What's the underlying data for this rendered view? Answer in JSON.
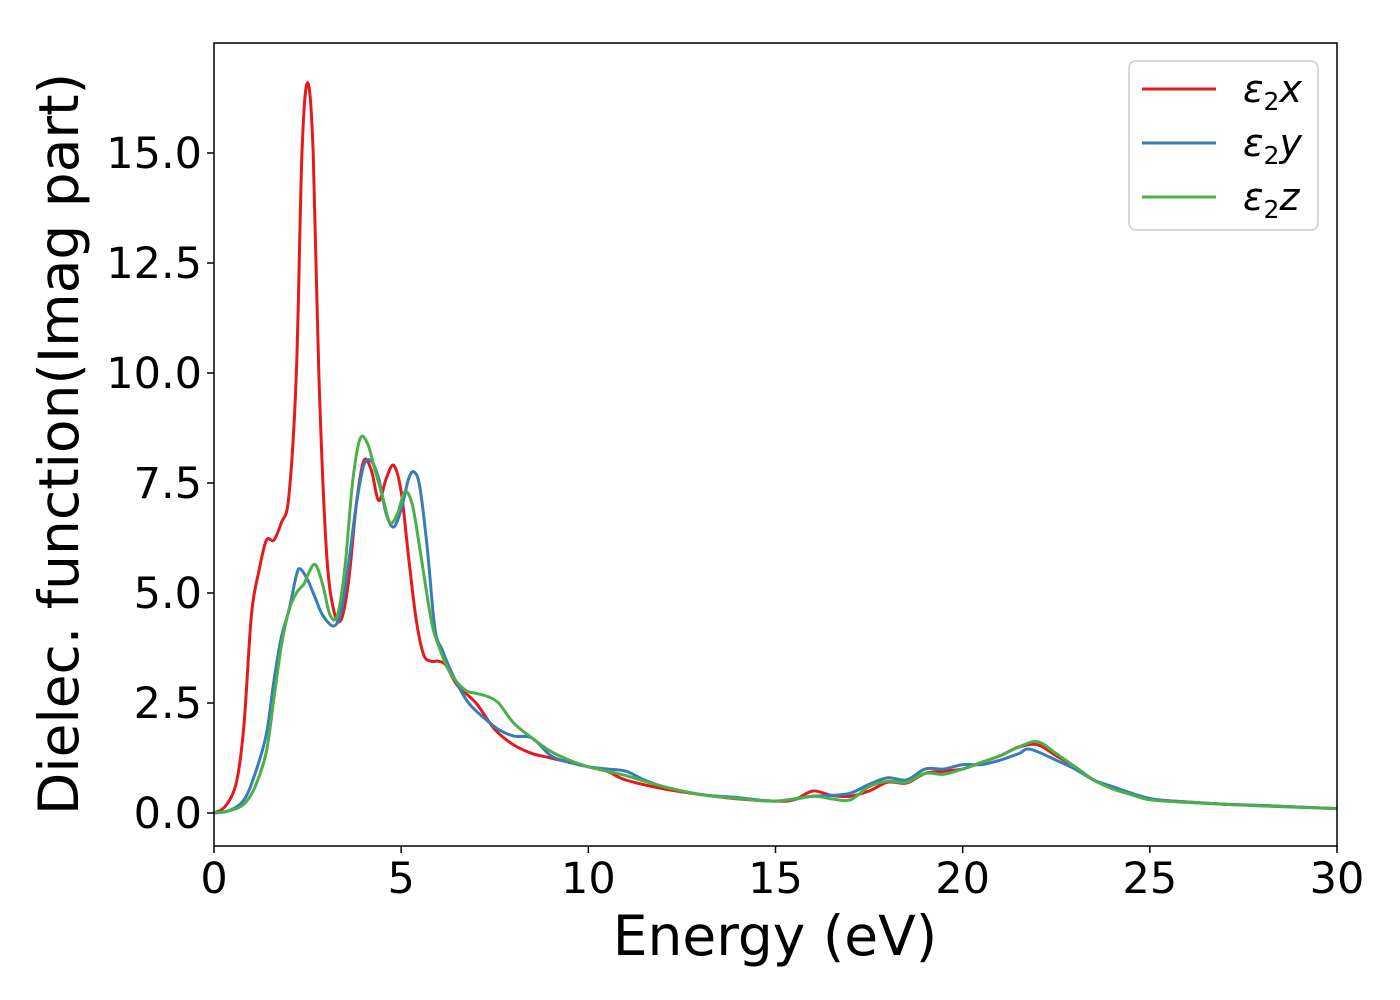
{
  "chart_data": {
    "type": "line",
    "xlabel": "Energy (eV)",
    "ylabel": "Dielec. function(Imag part)",
    "xlim": [
      0,
      30
    ],
    "ylim": [
      -0.75,
      17.5
    ],
    "x_ticks": [
      0,
      5,
      10,
      15,
      20,
      25,
      30
    ],
    "x_tick_labels": [
      "0",
      "5",
      "10",
      "15",
      "20",
      "25",
      "30"
    ],
    "y_ticks": [
      0.0,
      2.5,
      5.0,
      7.5,
      10.0,
      12.5,
      15.0
    ],
    "y_tick_labels": [
      "0.0",
      "2.5",
      "5.0",
      "7.5",
      "10.0",
      "12.5",
      "15.0"
    ],
    "grid": false,
    "legend_position": "top-right",
    "series": [
      {
        "name": "ε2x",
        "legend_main": "ε",
        "legend_sub": "2",
        "legend_var": "x",
        "color": "#e41a1c",
        "points": [
          [
            0,
            0
          ],
          [
            0.3,
            0.15
          ],
          [
            0.6,
            0.7
          ],
          [
            0.8,
            2.0
          ],
          [
            1.0,
            4.5
          ],
          [
            1.2,
            5.5
          ],
          [
            1.4,
            6.2
          ],
          [
            1.6,
            6.2
          ],
          [
            1.8,
            6.6
          ],
          [
            2.0,
            7.2
          ],
          [
            2.2,
            10.0
          ],
          [
            2.35,
            15.0
          ],
          [
            2.5,
            16.6
          ],
          [
            2.65,
            15.0
          ],
          [
            2.8,
            10.0
          ],
          [
            3.0,
            6.0
          ],
          [
            3.2,
            4.6
          ],
          [
            3.4,
            4.4
          ],
          [
            3.6,
            5.3
          ],
          [
            3.8,
            7.0
          ],
          [
            4.0,
            8.0
          ],
          [
            4.2,
            7.8
          ],
          [
            4.4,
            7.1
          ],
          [
            4.6,
            7.6
          ],
          [
            4.8,
            7.9
          ],
          [
            5.0,
            7.3
          ],
          [
            5.2,
            5.8
          ],
          [
            5.4,
            4.4
          ],
          [
            5.6,
            3.6
          ],
          [
            5.8,
            3.45
          ],
          [
            6.0,
            3.45
          ],
          [
            6.2,
            3.35
          ],
          [
            6.5,
            2.9
          ],
          [
            7.0,
            2.5
          ],
          [
            7.5,
            1.9
          ],
          [
            8.0,
            1.55
          ],
          [
            8.5,
            1.35
          ],
          [
            9.0,
            1.25
          ],
          [
            10.0,
            1.05
          ],
          [
            10.5,
            0.95
          ],
          [
            11.0,
            0.75
          ],
          [
            12.0,
            0.55
          ],
          [
            13.0,
            0.42
          ],
          [
            14.0,
            0.32
          ],
          [
            15.0,
            0.27
          ],
          [
            15.5,
            0.3
          ],
          [
            16.0,
            0.5
          ],
          [
            16.5,
            0.4
          ],
          [
            17.0,
            0.38
          ],
          [
            17.5,
            0.5
          ],
          [
            18.0,
            0.7
          ],
          [
            18.5,
            0.68
          ],
          [
            19.0,
            0.9
          ],
          [
            19.5,
            0.95
          ],
          [
            20.0,
            1.0
          ],
          [
            20.5,
            1.15
          ],
          [
            21.0,
            1.3
          ],
          [
            21.5,
            1.5
          ],
          [
            22.0,
            1.55
          ],
          [
            22.5,
            1.3
          ],
          [
            23.0,
            1.05
          ],
          [
            23.5,
            0.75
          ],
          [
            24.0,
            0.58
          ],
          [
            24.5,
            0.45
          ],
          [
            25.0,
            0.32
          ],
          [
            26.0,
            0.25
          ],
          [
            27.0,
            0.2
          ],
          [
            28.0,
            0.17
          ],
          [
            30.0,
            0.1
          ]
        ]
      },
      {
        "name": "ε2y",
        "legend_main": "ε",
        "legend_sub": "2",
        "legend_var": "y",
        "color": "#377eb8",
        "points": [
          [
            0,
            0
          ],
          [
            0.4,
            0.05
          ],
          [
            0.8,
            0.3
          ],
          [
            1.1,
            0.9
          ],
          [
            1.4,
            1.8
          ],
          [
            1.6,
            3.0
          ],
          [
            1.8,
            4.0
          ],
          [
            2.0,
            4.6
          ],
          [
            2.2,
            5.4
          ],
          [
            2.3,
            5.55
          ],
          [
            2.5,
            5.3
          ],
          [
            2.7,
            4.9
          ],
          [
            2.9,
            4.5
          ],
          [
            3.2,
            4.25
          ],
          [
            3.4,
            4.6
          ],
          [
            3.6,
            5.7
          ],
          [
            3.8,
            7.0
          ],
          [
            4.0,
            7.9
          ],
          [
            4.2,
            8.0
          ],
          [
            4.4,
            7.6
          ],
          [
            4.6,
            6.8
          ],
          [
            4.8,
            6.5
          ],
          [
            5.0,
            6.9
          ],
          [
            5.2,
            7.6
          ],
          [
            5.35,
            7.75
          ],
          [
            5.5,
            7.4
          ],
          [
            5.7,
            6.0
          ],
          [
            5.9,
            4.2
          ],
          [
            6.1,
            3.7
          ],
          [
            6.4,
            3.1
          ],
          [
            6.8,
            2.5
          ],
          [
            7.3,
            2.1
          ],
          [
            7.6,
            1.9
          ],
          [
            8.0,
            1.75
          ],
          [
            8.5,
            1.7
          ],
          [
            9.0,
            1.3
          ],
          [
            9.5,
            1.15
          ],
          [
            10.0,
            1.05
          ],
          [
            10.5,
            1.0
          ],
          [
            11.0,
            0.95
          ],
          [
            11.5,
            0.75
          ],
          [
            12.0,
            0.6
          ],
          [
            13.0,
            0.42
          ],
          [
            14.0,
            0.35
          ],
          [
            15.0,
            0.27
          ],
          [
            16.0,
            0.38
          ],
          [
            16.5,
            0.4
          ],
          [
            17.0,
            0.45
          ],
          [
            17.5,
            0.65
          ],
          [
            18.0,
            0.8
          ],
          [
            18.5,
            0.75
          ],
          [
            19.0,
            1.0
          ],
          [
            19.5,
            1.0
          ],
          [
            20.0,
            1.1
          ],
          [
            20.5,
            1.1
          ],
          [
            21.0,
            1.2
          ],
          [
            21.5,
            1.35
          ],
          [
            21.8,
            1.45
          ],
          [
            22.5,
            1.2
          ],
          [
            23.0,
            1.0
          ],
          [
            23.5,
            0.75
          ],
          [
            24.0,
            0.6
          ],
          [
            25.0,
            0.33
          ],
          [
            26.0,
            0.25
          ],
          [
            27.0,
            0.2
          ],
          [
            28.0,
            0.17
          ],
          [
            30.0,
            0.1
          ]
        ]
      },
      {
        "name": "ε2z",
        "legend_main": "ε",
        "legend_sub": "2",
        "legend_var": "z",
        "color": "#4daf4a",
        "points": [
          [
            0,
            0
          ],
          [
            0.4,
            0.05
          ],
          [
            0.8,
            0.2
          ],
          [
            1.1,
            0.6
          ],
          [
            1.4,
            1.4
          ],
          [
            1.6,
            2.6
          ],
          [
            1.8,
            3.8
          ],
          [
            2.0,
            4.6
          ],
          [
            2.2,
            5.0
          ],
          [
            2.4,
            5.2
          ],
          [
            2.5,
            5.4
          ],
          [
            2.7,
            5.65
          ],
          [
            2.9,
            5.2
          ],
          [
            3.1,
            4.5
          ],
          [
            3.3,
            4.5
          ],
          [
            3.5,
            5.6
          ],
          [
            3.7,
            7.5
          ],
          [
            3.9,
            8.5
          ],
          [
            4.1,
            8.4
          ],
          [
            4.3,
            7.8
          ],
          [
            4.5,
            7.2
          ],
          [
            4.7,
            6.6
          ],
          [
            4.9,
            6.8
          ],
          [
            5.1,
            7.3
          ],
          [
            5.3,
            7.0
          ],
          [
            5.5,
            6.0
          ],
          [
            5.8,
            4.4
          ],
          [
            6.0,
            3.8
          ],
          [
            6.3,
            3.2
          ],
          [
            6.7,
            2.8
          ],
          [
            7.0,
            2.72
          ],
          [
            7.3,
            2.65
          ],
          [
            7.6,
            2.5
          ],
          [
            8.0,
            2.05
          ],
          [
            8.5,
            1.7
          ],
          [
            9.0,
            1.4
          ],
          [
            9.5,
            1.2
          ],
          [
            10.0,
            1.05
          ],
          [
            10.5,
            0.95
          ],
          [
            11.0,
            0.85
          ],
          [
            12.0,
            0.6
          ],
          [
            13.0,
            0.42
          ],
          [
            14.0,
            0.33
          ],
          [
            15.0,
            0.27
          ],
          [
            16.0,
            0.38
          ],
          [
            16.5,
            0.32
          ],
          [
            17.0,
            0.3
          ],
          [
            17.5,
            0.6
          ],
          [
            18.0,
            0.72
          ],
          [
            18.5,
            0.7
          ],
          [
            19.0,
            0.9
          ],
          [
            19.5,
            0.88
          ],
          [
            20.0,
            1.0
          ],
          [
            20.5,
            1.15
          ],
          [
            21.0,
            1.3
          ],
          [
            21.5,
            1.5
          ],
          [
            22.0,
            1.62
          ],
          [
            22.5,
            1.35
          ],
          [
            23.0,
            1.05
          ],
          [
            23.5,
            0.75
          ],
          [
            24.0,
            0.55
          ],
          [
            24.5,
            0.42
          ],
          [
            25.0,
            0.3
          ],
          [
            26.0,
            0.24
          ],
          [
            27.0,
            0.2
          ],
          [
            28.0,
            0.16
          ],
          [
            30.0,
            0.1
          ]
        ]
      }
    ]
  }
}
